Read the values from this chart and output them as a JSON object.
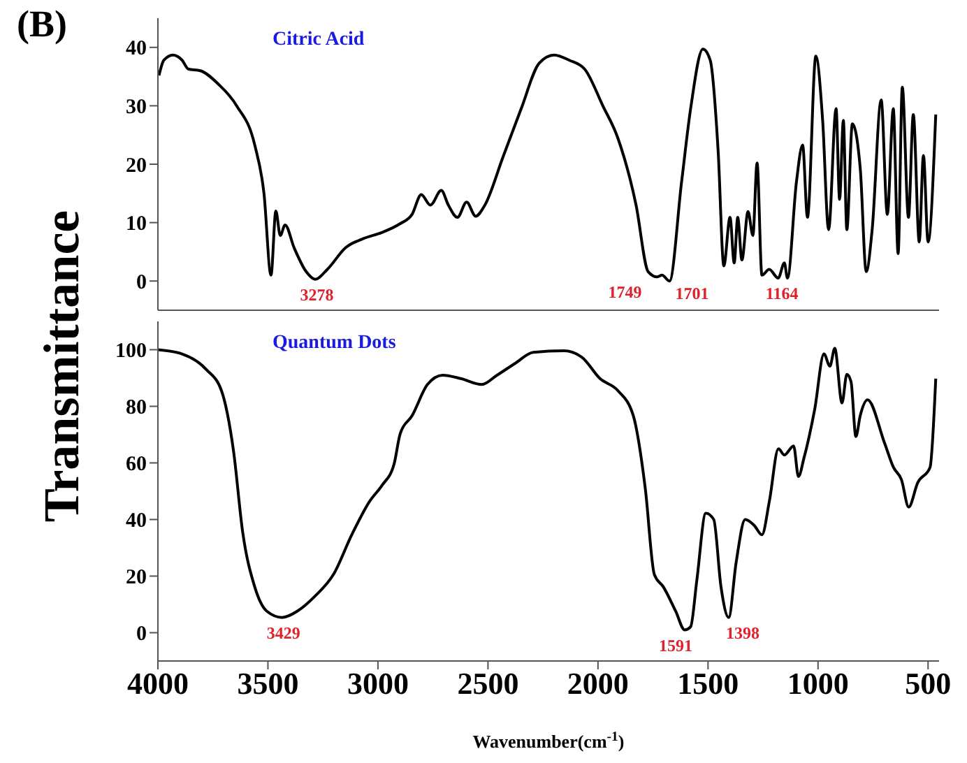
{
  "chart_data": [
    {
      "type": "line",
      "title": "Citric Acid",
      "ylabel": "Transmittance",
      "annotations": [
        "(B)",
        {
          "text": "3278",
          "x": 3278,
          "y": 0.3
        },
        {
          "text": "1749",
          "x": 1749,
          "y": 0.7
        },
        {
          "text": "1701",
          "x": 1701,
          "y": 0.5
        },
        {
          "text": "1164",
          "x": 1164,
          "y": 0.5
        }
      ],
      "series": [
        {
          "color": "#000000",
          "x": [
            3995,
            3973,
            3931,
            3890,
            3862,
            3807,
            3725,
            3642,
            3560,
            3518,
            3486,
            3464,
            3444,
            3422,
            3381,
            3326,
            3285,
            3230,
            3147,
            3064,
            2983,
            2900,
            2845,
            2803,
            2762,
            2712,
            2680,
            2639,
            2597,
            2556,
            2514,
            2432,
            2349,
            2267,
            2199,
            2130,
            2061,
            1978,
            1909,
            1827,
            1772,
            1731,
            1709,
            1675,
            1620,
            1579,
            1523,
            1490,
            1454,
            1428,
            1400,
            1381,
            1365,
            1346,
            1318,
            1296,
            1277,
            1255,
            1222,
            1181,
            1153,
            1139,
            1098,
            1070,
            1048,
            1010,
            979,
            952,
            918,
            902,
            885,
            869,
            844,
            808,
            781,
            754,
            713,
            685,
            658,
            636,
            617,
            589,
            567,
            540,
            521,
            500,
            465
          ],
          "values": [
            35.2,
            37.8,
            38.7,
            37.8,
            36.3,
            36,
            33.7,
            30,
            23.3,
            15,
            1,
            12,
            7.8,
            9.6,
            5.7,
            1.6,
            0.3,
            2,
            5.7,
            7.3,
            8.3,
            9.8,
            11.4,
            14.8,
            13,
            15.5,
            13,
            10.9,
            13.5,
            11.1,
            13,
            21.2,
            29.5,
            37.3,
            38.7,
            37.8,
            36.3,
            30,
            24.4,
            13,
            1.6,
            0.7,
            1,
            0,
            17,
            29.5,
            39.7,
            37.8,
            22.3,
            2.6,
            10.9,
            3.1,
            10.9,
            3.6,
            11.9,
            7.8,
            20.2,
            1,
            2,
            0.5,
            3.1,
            0.5,
            17,
            23.3,
            10.9,
            38.5,
            27.5,
            8.8,
            29.5,
            14,
            27.5,
            8.8,
            26.9,
            19.2,
            1.6,
            8.8,
            31,
            11.4,
            29.5,
            4.7,
            33.2,
            10.9,
            28.5,
            6.7,
            21.5,
            6.7,
            28.5
          ]
        }
      ],
      "xlim": [
        4000,
        450
      ],
      "xticks": [
        4000,
        3500,
        3000,
        2500,
        2000,
        1500,
        1000,
        500
      ],
      "ylim": [
        -5,
        45
      ],
      "yticks": [
        0,
        10,
        20,
        30,
        40
      ],
      "tick_labels": "y"
    },
    {
      "type": "line",
      "title": "Quantum Dots",
      "xlabel": "Wavenumber(cm$^{-1}$)",
      "annotations": [
        {
          "text": "3429",
          "x": 3429,
          "y": 5.4
        },
        {
          "text": "1591",
          "x": 1591,
          "y": 1
        },
        {
          "text": "1398",
          "x": 1398,
          "y": 5.4
        }
      ],
      "series": [
        {
          "color": "#000000",
          "x": [
            4000,
            3890,
            3780,
            3711,
            3656,
            3615,
            3560,
            3505,
            3436,
            3367,
            3285,
            3202,
            3119,
            3037,
            2982,
            2927,
            2899,
            2844,
            2775,
            2706,
            2624,
            2528,
            2459,
            2376,
            2294,
            2156,
            2074,
            1991,
            1909,
            1840,
            1785,
            1744,
            1703,
            1647,
            1606,
            1579,
            1551,
            1510,
            1474,
            1441,
            1406,
            1372,
            1331,
            1290,
            1255,
            1221,
            1180,
            1153,
            1111,
            1089,
            1064,
            1015,
            973,
            946,
            924,
            891,
            869,
            850,
            828,
            808,
            775,
            698,
            657,
            621,
            588,
            547,
            491,
            465
          ],
          "values": [
            100,
            98.5,
            93,
            85.5,
            64,
            35.7,
            16.2,
            7.6,
            5.4,
            7.6,
            13,
            20.6,
            34.6,
            46.5,
            52,
            59.5,
            70.3,
            76.8,
            87.7,
            91,
            89.8,
            87.7,
            91,
            95.2,
            99.1,
            99.6,
            97.4,
            89.8,
            85.5,
            76.8,
            50.9,
            20.6,
            16.2,
            7.6,
            1,
            2.1,
            18.4,
            42.2,
            40,
            16.2,
            5.4,
            24.9,
            40,
            37.9,
            34.6,
            46.5,
            65,
            62.8,
            66,
            55.2,
            61.7,
            79,
            98.5,
            94.2,
            100.5,
            81.2,
            91.3,
            88.7,
            69.3,
            76.8,
            82.3,
            67.1,
            58.4,
            54.1,
            44.4,
            53,
            58.4,
            89.8
          ]
        }
      ],
      "xlim": [
        4000,
        450
      ],
      "xticks": [
        4000,
        3500,
        3000,
        2500,
        2000,
        1500,
        1000,
        500
      ],
      "ylim": [
        -10,
        110
      ],
      "yticks": [
        0,
        20,
        40,
        60,
        80,
        100
      ]
    }
  ]
}
